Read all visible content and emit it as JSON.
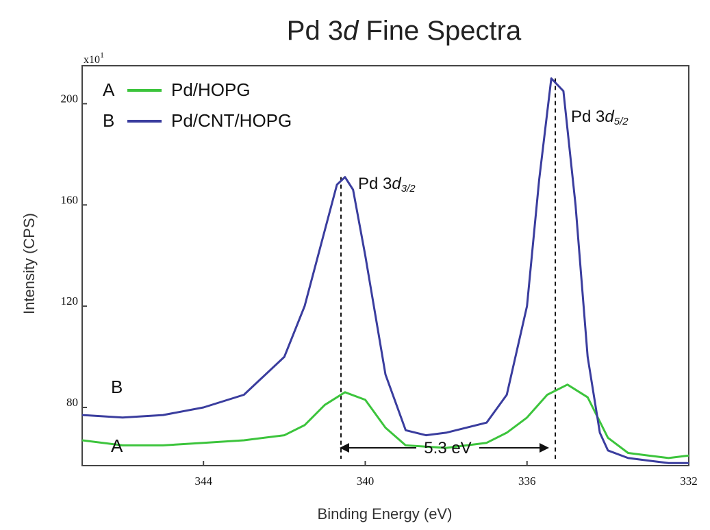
{
  "chart_data": {
    "type": "line",
    "title": "Pd 3d Fine Spectra",
    "title_parts": {
      "prefix": "Pd 3",
      "italic": "d",
      "suffix": " Fine Spectra"
    },
    "xlabel": "Binding Energy (eV)",
    "ylabel": "Intensity (CPS)",
    "y_multiplier": {
      "base": "x10",
      "exponent": "1"
    },
    "xlim": [
      347,
      332
    ],
    "ylim": [
      57,
      215
    ],
    "x_reversed": true,
    "grid": false,
    "x_ticks": [
      344,
      340,
      336,
      332
    ],
    "x_tick_labels": [
      "344",
      "340",
      "336",
      "332"
    ],
    "y_ticks": [
      80,
      120,
      160,
      200
    ],
    "y_tick_labels": [
      "80",
      "120",
      "160",
      "200"
    ],
    "legend": {
      "placement": "top-left",
      "entries": [
        {
          "key": "A",
          "label": "Pd/HOPG",
          "color": "#3cc43c"
        },
        {
          "key": "B",
          "label": "Pd/CNT/HOPG",
          "color": "#3a3d9e"
        }
      ]
    },
    "series": [
      {
        "name": "Pd/HOPG",
        "key": "A",
        "color": "#3cc43c",
        "x": [
          347,
          346,
          345,
          344,
          343,
          342,
          341.5,
          341,
          340.5,
          340,
          339.5,
          339,
          338,
          337,
          336.5,
          336,
          335.5,
          335,
          334.5,
          334,
          333.5,
          333,
          332.5,
          332
        ],
        "y": [
          67,
          65,
          65,
          66,
          67,
          69,
          73,
          81,
          86,
          83,
          72,
          65,
          64,
          66,
          70,
          76,
          85,
          89,
          84,
          68,
          62,
          61,
          60,
          61
        ]
      },
      {
        "name": "Pd/CNT/HOPG",
        "key": "B",
        "color": "#3a3d9e",
        "x": [
          347,
          346,
          345,
          344,
          343,
          342,
          341.5,
          341,
          340.7,
          340.5,
          340.3,
          340,
          339.5,
          339,
          338.5,
          338,
          337,
          336.5,
          336,
          335.7,
          335.4,
          335.1,
          334.8,
          334.5,
          334.2,
          334,
          333.5,
          333,
          332.5,
          332
        ],
        "y": [
          77,
          76,
          77,
          80,
          85,
          100,
          120,
          150,
          168,
          171,
          166,
          140,
          93,
          71,
          69,
          70,
          74,
          85,
          120,
          170,
          210,
          205,
          160,
          100,
          70,
          63,
          60,
          59,
          58,
          58
        ]
      }
    ],
    "annotations": [
      {
        "text_prefix": "Pd 3",
        "text_italic": "d",
        "text_sub": "3/2"
      },
      {
        "text_prefix": "Pd 3",
        "text_italic": "d",
        "text_sub": "5/2"
      },
      {
        "text": "5.3 eV"
      },
      {
        "text": "B"
      },
      {
        "text": "A"
      }
    ],
    "reference_lines_x": [
      340.6,
      335.3
    ]
  }
}
